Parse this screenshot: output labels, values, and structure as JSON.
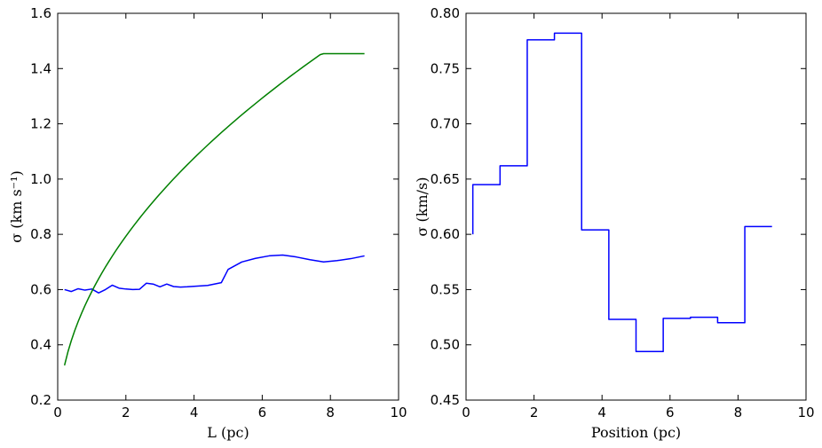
{
  "chart_data": [
    {
      "type": "line",
      "xlabel": "L (pc)",
      "ylabel": "σ (km s⁻¹)",
      "xlim": [
        0,
        10
      ],
      "ylim": [
        0.2,
        1.6
      ],
      "xticks": [
        "0",
        "2",
        "4",
        "6",
        "8",
        "10"
      ],
      "yticks": [
        "0.2",
        "0.4",
        "0.6",
        "0.8",
        "1.0",
        "1.2",
        "1.4",
        "1.6"
      ],
      "grid": false,
      "series": [
        {
          "color": "#0000ff",
          "x": [
            0.2,
            0.4,
            0.6,
            0.8,
            1.0,
            1.2,
            1.4,
            1.6,
            1.8,
            2.0,
            2.2,
            2.4,
            2.6,
            2.8,
            3.0,
            3.2,
            3.4,
            3.6,
            3.8,
            4.0,
            4.4,
            4.8,
            5.0,
            5.4,
            5.8,
            6.2,
            6.6,
            7.0,
            7.4,
            7.8,
            8.2,
            8.6,
            9.0
          ],
          "values": [
            0.6,
            0.593,
            0.603,
            0.598,
            0.602,
            0.588,
            0.6,
            0.616,
            0.605,
            0.602,
            0.6,
            0.601,
            0.623,
            0.62,
            0.61,
            0.62,
            0.611,
            0.609,
            0.61,
            0.612,
            0.615,
            0.625,
            0.673,
            0.7,
            0.713,
            0.722,
            0.725,
            0.718,
            0.708,
            0.7,
            0.705,
            0.712,
            0.722
          ]
        },
        {
          "color": "#008000",
          "function": "sqrt",
          "x": [
            0.2,
            0.4,
            0.6,
            0.8,
            1.0,
            1.5,
            2.0,
            3.0,
            4.0,
            5.0,
            6.0,
            7.0,
            8.0,
            9.0
          ],
          "values": [
            0.327,
            0.432,
            0.507,
            0.568,
            0.62,
            0.731,
            0.824,
            0.978,
            1.107,
            1.22,
            1.322,
            1.416,
            1.503,
            1.454
          ]
        }
      ]
    },
    {
      "type": "line",
      "step": true,
      "xlabel": "Position (pc)",
      "ylabel": "σ (km/s)",
      "xlim": [
        0,
        10
      ],
      "ylim": [
        0.45,
        0.8
      ],
      "xticks": [
        "0",
        "2",
        "4",
        "6",
        "8",
        "10"
      ],
      "yticks": [
        "0.45",
        "0.50",
        "0.55",
        "0.60",
        "0.65",
        "0.70",
        "0.75",
        "0.80"
      ],
      "grid": false,
      "series": [
        {
          "color": "#0000ff",
          "x": [
            0.2,
            0.2,
            1.0,
            1.0,
            1.8,
            1.8,
            2.6,
            2.6,
            3.4,
            3.4,
            4.2,
            4.2,
            5.0,
            5.0,
            5.8,
            5.8,
            6.6,
            6.6,
            7.4,
            7.4,
            8.2,
            8.2,
            9.0
          ],
          "values": [
            0.6,
            0.645,
            0.645,
            0.662,
            0.662,
            0.776,
            0.776,
            0.782,
            0.782,
            0.604,
            0.604,
            0.523,
            0.523,
            0.494,
            0.494,
            0.524,
            0.524,
            0.525,
            0.525,
            0.52,
            0.52,
            0.607,
            0.607
          ]
        }
      ]
    }
  ]
}
